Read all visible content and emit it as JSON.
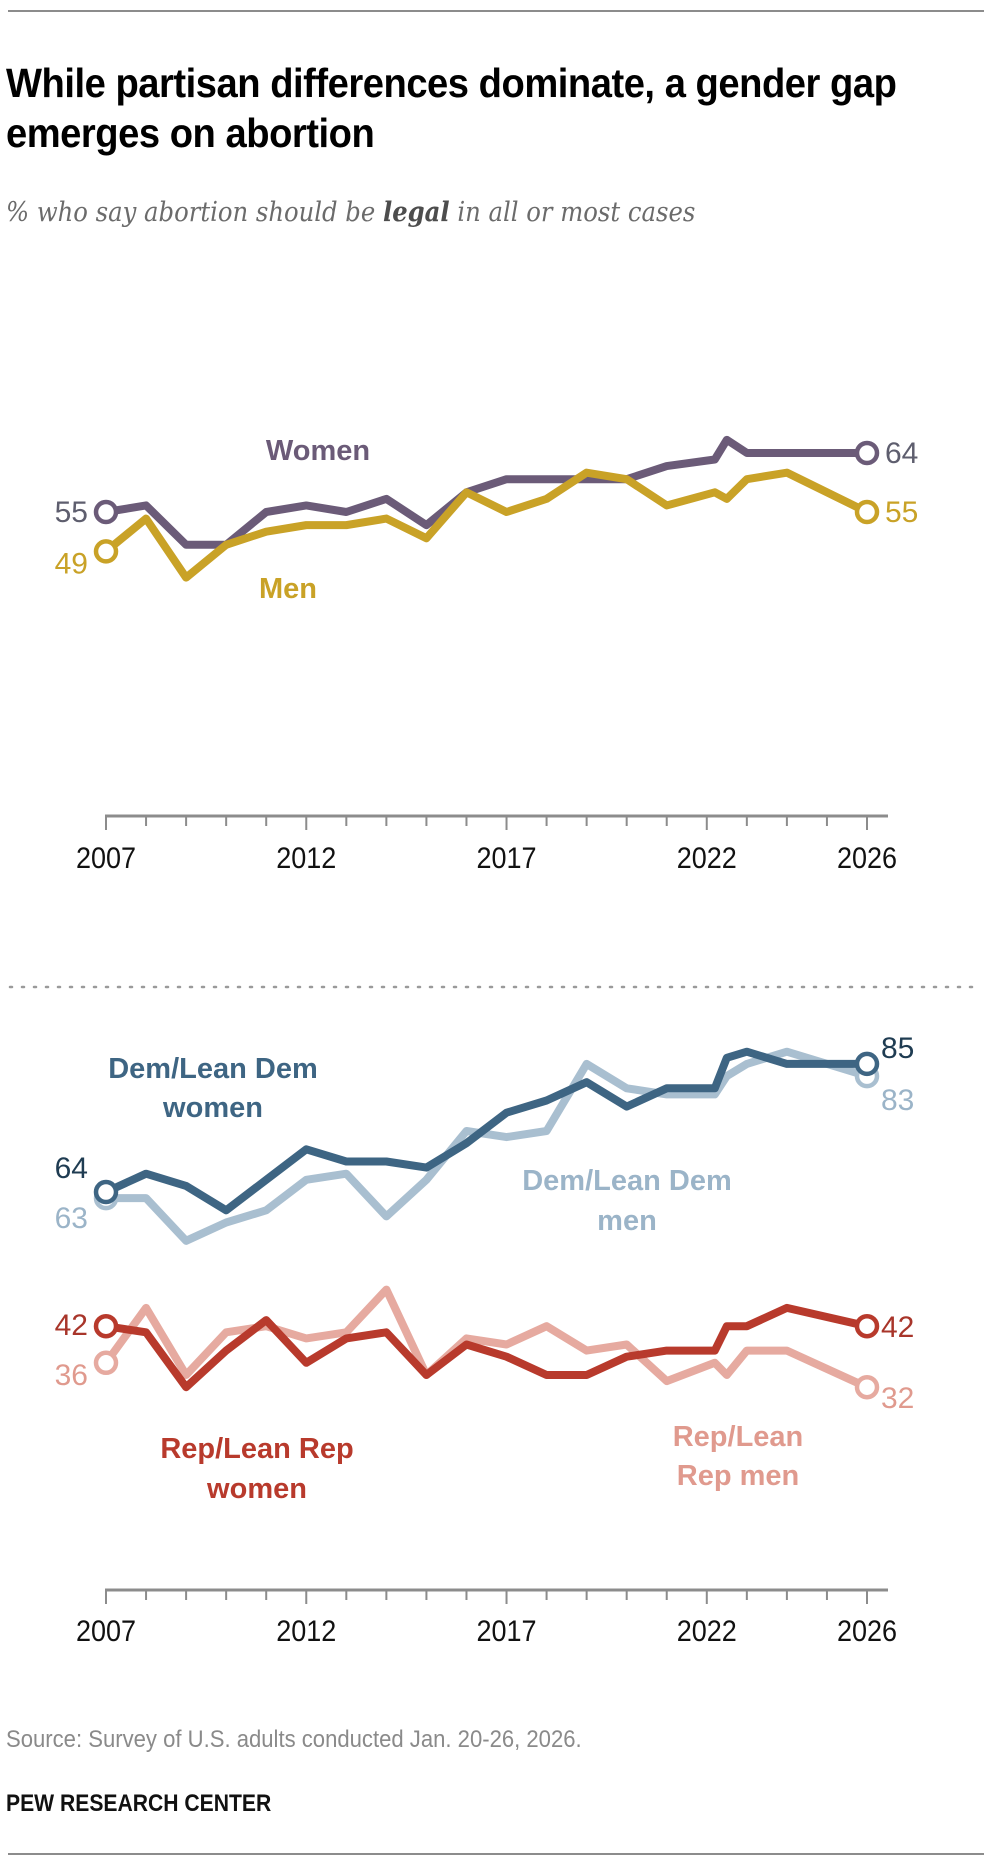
{
  "header": {
    "title": "While partisan differences dominate, a gender gap emerges on abortion",
    "subtitle_before": "% who say abortion should be ",
    "subtitle_emphasis": "legal",
    "subtitle_after": " in all or most cases"
  },
  "footer": {
    "source": "Source: Survey of U.S. adults conducted Jan. 20-26, 2026.",
    "brand": "PEW RESEARCH CENTER"
  },
  "chart_data": [
    {
      "type": "line",
      "title": "% who say abortion should be legal in all or most cases, by gender",
      "xlabel": "",
      "ylabel": "",
      "x_ticks": [
        2007,
        2012,
        2017,
        2022,
        2026
      ],
      "x_range": [
        2007,
        2026
      ],
      "ylim": [
        30,
        70
      ],
      "grid": false,
      "x": [
        2007,
        2008,
        2009,
        2010,
        2011,
        2012,
        2013,
        2014,
        2015,
        2016,
        2017,
        2018,
        2019,
        2020,
        2021,
        2022.2,
        2022.5,
        2023,
        2024,
        2026
      ],
      "series": [
        {
          "name": "Women",
          "color": "#6b5b78",
          "label_start": "55",
          "label_end": "64",
          "values": [
            55,
            56,
            50,
            50,
            55,
            56,
            55,
            57,
            53,
            58,
            60,
            60,
            60,
            60,
            62,
            63,
            66,
            64,
            64,
            64
          ]
        },
        {
          "name": "Men",
          "color": "#c9a227",
          "label_start": "49",
          "label_end": "55",
          "values": [
            49,
            54,
            45,
            50,
            52,
            53,
            53,
            54,
            51,
            58,
            55,
            57,
            61,
            60,
            56,
            58,
            57,
            60,
            61,
            55
          ]
        }
      ]
    },
    {
      "type": "line",
      "title": "% who say abortion should be legal in all or most cases, by party and gender",
      "xlabel": "",
      "ylabel": "",
      "x_ticks": [
        2007,
        2012,
        2017,
        2022,
        2026
      ],
      "x_range": [
        2007,
        2026
      ],
      "ylim": [
        20,
        95
      ],
      "grid": false,
      "x": [
        2007,
        2008,
        2009,
        2010,
        2011,
        2012,
        2013,
        2014,
        2015,
        2016,
        2017,
        2018,
        2019,
        2020,
        2021,
        2022.2,
        2022.5,
        2023,
        2024,
        2026
      ],
      "series": [
        {
          "name": "Dem/Lean Dem men",
          "color": "#a9bfd0",
          "label_start": "63",
          "label_end": "83",
          "values": [
            63,
            63,
            56,
            59,
            61,
            66,
            67,
            60,
            66,
            74,
            73,
            74,
            85,
            81,
            80,
            80,
            83,
            85,
            87,
            83
          ]
        },
        {
          "name": "Dem/Lean Dem women",
          "color": "#3e6583",
          "label_start": "64",
          "label_end": "85",
          "values": [
            64,
            67,
            65,
            61,
            66,
            71,
            69,
            69,
            68,
            72,
            77,
            79,
            82,
            78,
            81,
            81,
            86,
            87,
            85,
            85
          ]
        },
        {
          "name": "Rep/Lean Rep men",
          "color": "#e6aaa0",
          "label_start": "36",
          "label_end": "32",
          "values": [
            36,
            45,
            34,
            41,
            42,
            40,
            41,
            48,
            34,
            40,
            39,
            42,
            38,
            39,
            33,
            36,
            34,
            38,
            38,
            32
          ]
        },
        {
          "name": "Rep/Lean Rep women",
          "color": "#b83a2c",
          "label_start": "42",
          "label_end": "42",
          "values": [
            42,
            41,
            32,
            38,
            43,
            36,
            40,
            41,
            34,
            39,
            37,
            34,
            34,
            37,
            38,
            38,
            42,
            42,
            45,
            42
          ]
        }
      ]
    }
  ],
  "annotations": {
    "women": "Women",
    "men": "Men",
    "dem_women_1": "Dem/Lean Dem",
    "dem_women_2": "women",
    "dem_men_1": "Dem/Lean Dem",
    "dem_men_2": "men",
    "rep_women_1": "Rep/Lean Rep",
    "rep_women_2": "women",
    "rep_men_1": "Rep/Lean",
    "rep_men_2": "Rep men"
  }
}
